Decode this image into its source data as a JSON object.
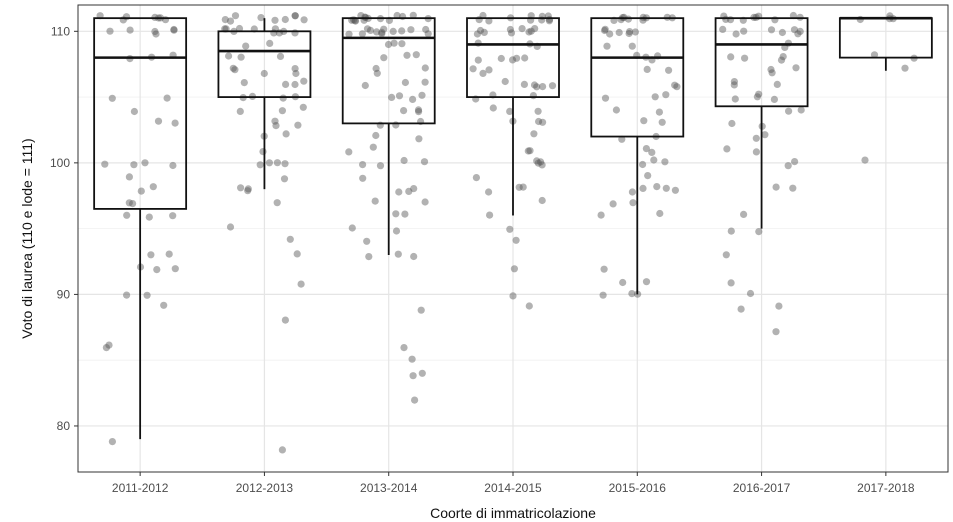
{
  "chart_data": {
    "type": "boxplot",
    "xlabel": "Coorte di immatricolazione",
    "ylabel": "Voto di laurea (110 e lode = 111)",
    "ylim": [
      76.5,
      112
    ],
    "y_ticks": [
      80,
      90,
      100,
      110
    ],
    "y_tick_labels": [
      "80",
      "90",
      "100",
      "110"
    ],
    "grid": true,
    "colors": {
      "point": "#555555",
      "box": "#111111",
      "grid": "#e5e5e5",
      "panel_border": "#333333"
    },
    "categories": [
      "2011-2012",
      "2012-2013",
      "2013-2014",
      "2014-2015",
      "2015-2016",
      "2016-2017",
      "2017-2018"
    ],
    "boxes": [
      {
        "category": "2011-2012",
        "whisker_low": 79,
        "q1": 96.5,
        "median": 108,
        "q3": 111,
        "whisker_high": 111
      },
      {
        "category": "2012-2013",
        "whisker_low": 98,
        "q1": 105,
        "median": 108.5,
        "q3": 110,
        "whisker_high": 111
      },
      {
        "category": "2013-2014",
        "whisker_low": 93,
        "q1": 103,
        "median": 109.5,
        "q3": 111,
        "whisker_high": 111
      },
      {
        "category": "2014-2015",
        "whisker_low": 96,
        "q1": 105,
        "median": 109,
        "q3": 111,
        "whisker_high": 111
      },
      {
        "category": "2015-2016",
        "whisker_low": 90,
        "q1": 102,
        "median": 108,
        "q3": 111,
        "whisker_high": 111
      },
      {
        "category": "2016-2017",
        "whisker_low": 95,
        "q1": 104.3,
        "median": 109,
        "q3": 111,
        "whisker_high": 111
      },
      {
        "category": "2017-2018",
        "whisker_low": 107,
        "q1": 108,
        "median": 111,
        "q3": 111,
        "whisker_high": 111
      }
    ],
    "points": [
      {
        "category": "2011-2012",
        "values": [
          111,
          111,
          111,
          111,
          111,
          111,
          111,
          110,
          110,
          110,
          110,
          110,
          110,
          108,
          108,
          108,
          105,
          105,
          104,
          103,
          103,
          100,
          100,
          100,
          100,
          99,
          98,
          98,
          97,
          97,
          96,
          96,
          96,
          93,
          93,
          92,
          92,
          92,
          90,
          90,
          89,
          86,
          86,
          79
        ]
      },
      {
        "category": "2012-2013",
        "values": [
          111,
          111,
          111,
          111,
          111,
          111,
          111,
          111,
          111,
          110,
          110,
          110,
          110,
          110,
          110,
          110,
          110,
          110,
          110,
          109,
          109,
          108,
          108,
          108,
          107,
          107,
          107,
          107,
          107,
          106,
          106,
          106,
          106,
          105,
          105,
          105,
          105,
          104,
          104,
          104,
          103,
          103,
          103,
          102,
          102,
          101,
          100,
          100,
          100,
          100,
          99,
          98,
          98,
          98,
          97,
          95,
          94,
          93,
          91,
          88,
          78
        ]
      },
      {
        "category": "2013-2014",
        "values": [
          111,
          111,
          111,
          111,
          111,
          111,
          111,
          111,
          111,
          111,
          111,
          111,
          111,
          111,
          111,
          110,
          110,
          110,
          110,
          110,
          110,
          110,
          110,
          110,
          110,
          110,
          110,
          110,
          109,
          109,
          109,
          108,
          108,
          108,
          107,
          107,
          107,
          106,
          106,
          106,
          105,
          105,
          105,
          105,
          104,
          104,
          104,
          103,
          103,
          103,
          102,
          102,
          101,
          101,
          100,
          100,
          100,
          100,
          99,
          98,
          98,
          98,
          97,
          97,
          96,
          96,
          95,
          95,
          94,
          93,
          93,
          93,
          89,
          86,
          85,
          84,
          84,
          82
        ]
      },
      {
        "category": "2014-2015",
        "values": [
          111,
          111,
          111,
          111,
          111,
          111,
          111,
          111,
          111,
          111,
          111,
          110,
          110,
          110,
          110,
          110,
          110,
          110,
          110,
          110,
          109,
          109,
          109,
          108,
          108,
          108,
          108,
          108,
          107,
          107,
          107,
          106,
          106,
          106,
          106,
          106,
          106,
          105,
          105,
          105,
          104,
          104,
          104,
          103,
          103,
          103,
          102,
          101,
          101,
          100,
          100,
          100,
          100,
          99,
          98,
          98,
          98,
          97,
          96,
          95,
          94,
          92,
          90,
          89
        ]
      },
      {
        "category": "2015-2016",
        "values": [
          111,
          111,
          111,
          111,
          111,
          111,
          111,
          111,
          111,
          111,
          110,
          110,
          110,
          110,
          110,
          110,
          110,
          109,
          109,
          108,
          108,
          108,
          108,
          107,
          107,
          106,
          106,
          105,
          105,
          105,
          104,
          104,
          103,
          103,
          102,
          102,
          101,
          101,
          100,
          100,
          100,
          99,
          98,
          98,
          98,
          98,
          98,
          97,
          97,
          96,
          96,
          92,
          91,
          91,
          90,
          90,
          90
        ]
      },
      {
        "category": "2016-2017",
        "values": [
          111,
          111,
          111,
          111,
          111,
          111,
          111,
          111,
          111,
          111,
          110,
          110,
          110,
          110,
          110,
          110,
          110,
          110,
          109,
          109,
          108,
          108,
          108,
          108,
          107,
          107,
          107,
          106,
          106,
          106,
          105,
          105,
          105,
          105,
          104,
          104,
          103,
          103,
          102,
          102,
          101,
          101,
          100,
          100,
          98,
          98,
          96,
          95,
          95,
          93,
          91,
          90,
          89,
          89,
          87
        ]
      },
      {
        "category": "2017-2018",
        "values": [
          111,
          111,
          111,
          111,
          108,
          108,
          107,
          100
        ]
      }
    ]
  }
}
